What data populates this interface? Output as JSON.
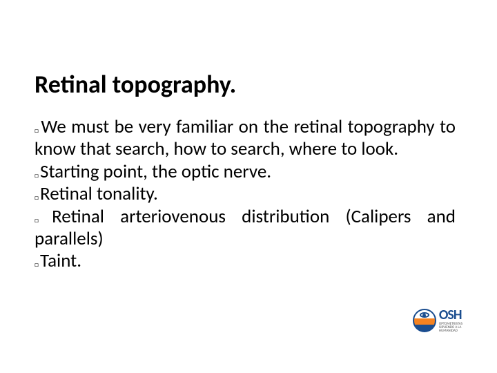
{
  "title": "Retinal topography.",
  "bullets": [
    "We must be very familiar on the retinal topography to know that search, how to search, where to look.",
    "Starting point, the optic nerve.",
    "Retinal tonality.",
    "Retinal arteriovenous distribution (Calipers and parallels)",
    "Taint."
  ],
  "logo": {
    "main": "OSH",
    "sub1": "OPTOMETRISTAS",
    "sub2": "SIRVIENDO A LA",
    "sub3": "HUMANIDAD"
  },
  "colors": {
    "title_color": "#000000",
    "body_color": "#000000",
    "background": "#ffffff",
    "logo_blue": "#1a4d8f",
    "logo_orange": "#f58220"
  },
  "typography": {
    "title_fontsize": 36,
    "body_fontsize": 27,
    "title_weight": "bold"
  }
}
